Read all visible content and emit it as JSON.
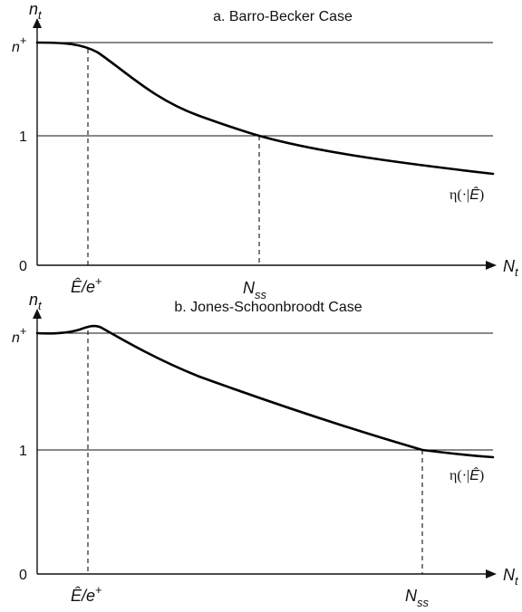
{
  "panels": [
    {
      "title": "a. Barro-Becker Case",
      "y_axis_label": {
        "main": "n",
        "sub": "t"
      },
      "x_axis_label": {
        "main": "N",
        "sub": "t"
      },
      "y_ticks": {
        "top": {
          "main": "n",
          "sup": "+"
        },
        "one": "1",
        "zero": "0"
      },
      "x_ticks": {
        "left": {
          "main": "Ê",
          "slash": "/e",
          "sup": "+"
        },
        "right": {
          "main": "N",
          "sub": "ss"
        }
      },
      "curve_label": {
        "prefix": "η(·|",
        "hat_e": "Ê",
        "suffix": ")"
      }
    },
    {
      "title": "b. Jones-Schoonbroodt Case",
      "y_axis_label": {
        "main": "n",
        "sub": "t"
      },
      "x_axis_label": {
        "main": "N",
        "sub": "t"
      },
      "y_ticks": {
        "top": {
          "main": "n",
          "sup": "+"
        },
        "one": "1",
        "zero": "0"
      },
      "x_ticks": {
        "left": {
          "main": "Ê",
          "slash": "/e",
          "sup": "+"
        },
        "right": {
          "main": "N",
          "sub": "ss"
        }
      },
      "curve_label": {
        "prefix": "η(·|",
        "hat_e": "Ê",
        "suffix": ")"
      }
    }
  ]
}
